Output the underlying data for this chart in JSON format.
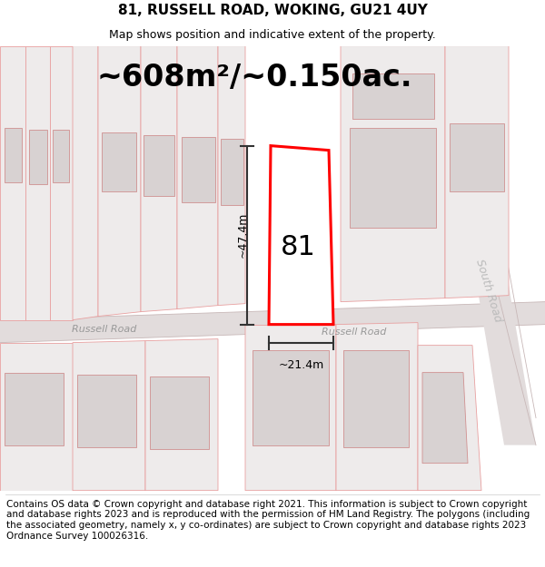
{
  "title": "81, RUSSELL ROAD, WOKING, GU21 4UY",
  "subtitle": "Map shows position and indicative extent of the property.",
  "area_text": "~608m²/~0.150ac.",
  "dimension_width": "~21.4m",
  "dimension_height": "~47.4m",
  "property_label": "81",
  "road_label_left": "Russell Road",
  "road_label_right": "Russell Road",
  "road_label_south": "South Road",
  "footer_text": "Contains OS data © Crown copyright and database right 2021. This information is subject to Crown copyright and database rights 2023 and is reproduced with the permission of HM Land Registry. The polygons (including the associated geometry, namely x, y co-ordinates) are subject to Crown copyright and database rights 2023 Ordnance Survey 100026316.",
  "bg_color": "#ffffff",
  "map_bg": "#f7f3f3",
  "parcel_fill": "#eeebeb",
  "parcel_edge": "#e8a0a0",
  "building_fill": "#d8d2d2",
  "building_edge": "#d09090",
  "road_fill": "#e2dcdc",
  "road_edge": "#c8b8b8",
  "property_fill": "#ffffff",
  "property_edge": "#ff0000",
  "dim_color": "#333333",
  "title_fontsize": 11,
  "subtitle_fontsize": 9,
  "area_fontsize": 24,
  "road_label_fontsize": 8,
  "south_road_fontsize": 9,
  "property_label_fontsize": 22,
  "dim_fontsize": 9,
  "footer_fontsize": 7.5
}
